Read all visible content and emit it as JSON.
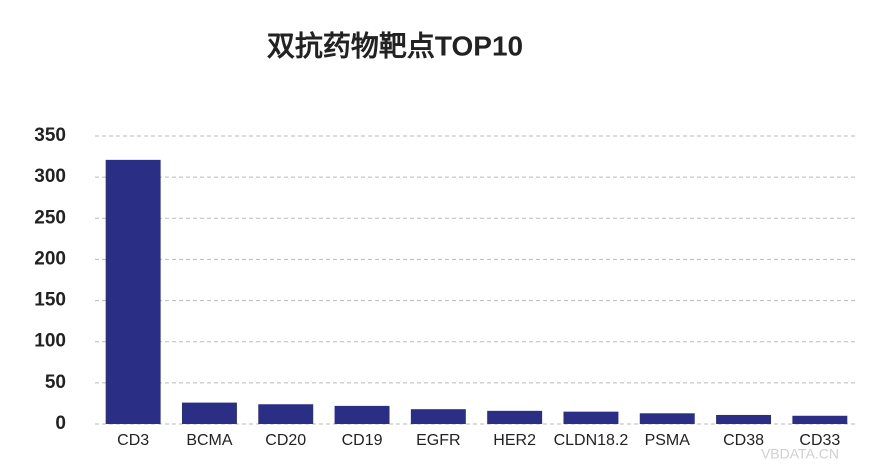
{
  "chart_data": {
    "type": "bar",
    "title": "双抗药物靶点TOP10",
    "categories": [
      "CD3",
      "BCMA",
      "CD20",
      "CD19",
      "EGFR",
      "HER2",
      "CLDN18.2",
      "PSMA",
      "CD38",
      "CD33"
    ],
    "values": [
      321,
      26,
      24,
      22,
      18,
      16,
      15,
      13,
      11,
      10
    ],
    "color": "#2b2e85",
    "ylim": [
      0,
      350
    ],
    "yticks": [
      0,
      50,
      100,
      150,
      200,
      250,
      300,
      350
    ],
    "grid": true,
    "watermark": "VBDATA.CN"
  }
}
